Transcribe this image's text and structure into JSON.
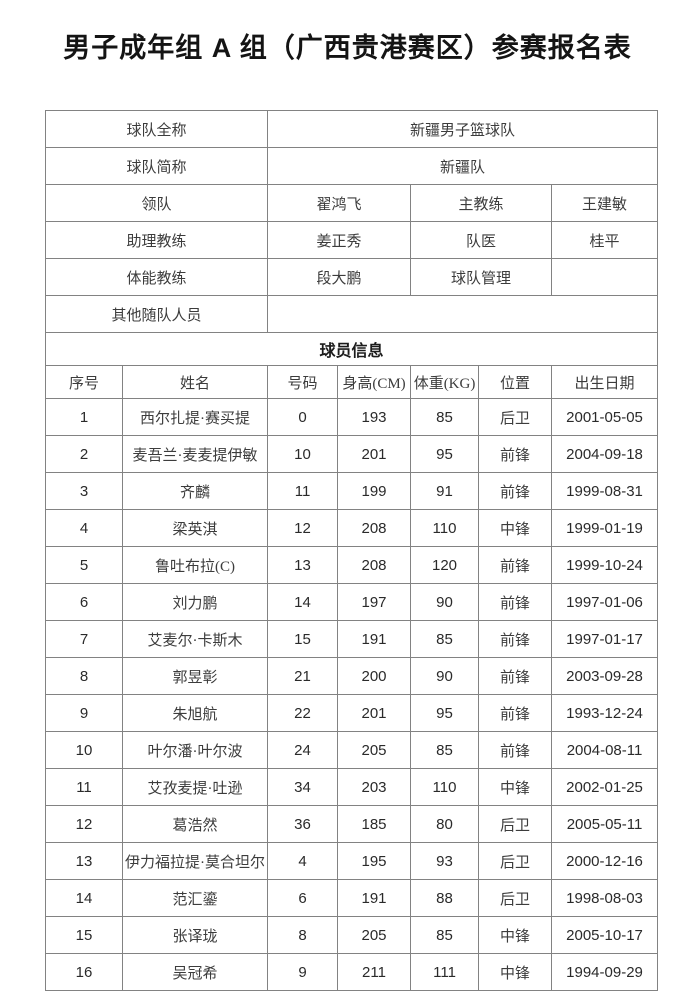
{
  "title": "男子成年组 A 组（广西贵港赛区）参赛报名表",
  "colors": {
    "background": "#ffffff",
    "border": "#828282",
    "text": "#3c3c3c",
    "title_text": "#141414"
  },
  "team_info": {
    "full_name_label": "球队全称",
    "full_name_value": "新疆男子篮球队",
    "short_name_label": "球队简称",
    "short_name_value": "新疆队",
    "leader_label": "领队",
    "leader_value": "翟鸿飞",
    "head_coach_label": "主教练",
    "head_coach_value": "王建敏",
    "assistant_coach_label": "助理教练",
    "assistant_coach_value": "姜正秀",
    "team_doctor_label": "队医",
    "team_doctor_value": "桂平",
    "fitness_coach_label": "体能教练",
    "fitness_coach_value": "段大鹏",
    "team_manager_label": "球队管理",
    "team_manager_value": "",
    "other_staff_label": "其他随队人员",
    "other_staff_value": ""
  },
  "players": {
    "section_title": "球员信息",
    "columns": [
      "序号",
      "姓名",
      "号码",
      "身高(CM)",
      "体重(KG)",
      "位置",
      "出生日期"
    ],
    "col_keys": [
      "no",
      "name",
      "number",
      "height",
      "weight",
      "position",
      "birth"
    ],
    "rows": [
      {
        "no": "1",
        "name": "西尔扎提·赛买提",
        "number": "0",
        "height": "193",
        "weight": "85",
        "position": "后卫",
        "birth": "2001-05-05"
      },
      {
        "no": "2",
        "name": "麦吾兰·麦麦提伊敏",
        "number": "10",
        "height": "201",
        "weight": "95",
        "position": "前锋",
        "birth": "2004-09-18"
      },
      {
        "no": "3",
        "name": "齐麟",
        "number": "11",
        "height": "199",
        "weight": "91",
        "position": "前锋",
        "birth": "1999-08-31"
      },
      {
        "no": "4",
        "name": "梁英淇",
        "number": "12",
        "height": "208",
        "weight": "110",
        "position": "中锋",
        "birth": "1999-01-19"
      },
      {
        "no": "5",
        "name": "鲁吐布拉(C)",
        "number": "13",
        "height": "208",
        "weight": "120",
        "position": "前锋",
        "birth": "1999-10-24"
      },
      {
        "no": "6",
        "name": "刘力鹏",
        "number": "14",
        "height": "197",
        "weight": "90",
        "position": "前锋",
        "birth": "1997-01-06"
      },
      {
        "no": "7",
        "name": "艾麦尔·卡斯木",
        "number": "15",
        "height": "191",
        "weight": "85",
        "position": "前锋",
        "birth": "1997-01-17"
      },
      {
        "no": "8",
        "name": "郭昱彰",
        "number": "21",
        "height": "200",
        "weight": "90",
        "position": "前锋",
        "birth": "2003-09-28"
      },
      {
        "no": "9",
        "name": "朱旭航",
        "number": "22",
        "height": "201",
        "weight": "95",
        "position": "前锋",
        "birth": "1993-12-24"
      },
      {
        "no": "10",
        "name": "叶尔潘·叶尔波",
        "number": "24",
        "height": "205",
        "weight": "85",
        "position": "前锋",
        "birth": "2004-08-11"
      },
      {
        "no": "11",
        "name": "艾孜麦提·吐逊",
        "number": "34",
        "height": "203",
        "weight": "110",
        "position": "中锋",
        "birth": "2002-01-25"
      },
      {
        "no": "12",
        "name": "葛浩然",
        "number": "36",
        "height": "185",
        "weight": "80",
        "position": "后卫",
        "birth": "2005-05-11"
      },
      {
        "no": "13",
        "name": "伊力福拉提·莫合坦尔",
        "number": "4",
        "height": "195",
        "weight": "93",
        "position": "后卫",
        "birth": "2000-12-16"
      },
      {
        "no": "14",
        "name": "范汇鎏",
        "number": "6",
        "height": "191",
        "weight": "88",
        "position": "后卫",
        "birth": "1998-08-03"
      },
      {
        "no": "15",
        "name": "张译珑",
        "number": "8",
        "height": "205",
        "weight": "85",
        "position": "中锋",
        "birth": "2005-10-17"
      },
      {
        "no": "16",
        "name": "吴冠希",
        "number": "9",
        "height": "211",
        "weight": "111",
        "position": "中锋",
        "birth": "1994-09-29"
      }
    ]
  }
}
